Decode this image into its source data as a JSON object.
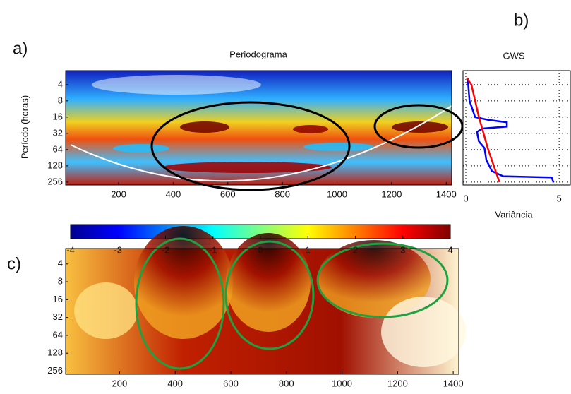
{
  "labels": {
    "a": "a)",
    "b": "b)",
    "c": "c)"
  },
  "chart_data": [
    {
      "type": "heatmap",
      "title": "Periodograma",
      "y_label": "Período (horas)",
      "xlim": [
        6,
        1420
      ],
      "xticks": [
        200,
        400,
        600,
        800,
        1000,
        1200,
        1400
      ],
      "ylim": [
        2.2,
        290
      ],
      "yticks": [
        4,
        8,
        16,
        32,
        64,
        128,
        256
      ],
      "y_log_scale": true,
      "colormap": "jet",
      "colorbar": {
        "lim": [
          -4,
          4
        ],
        "ticks": [
          -4,
          -3,
          -2,
          -1,
          0,
          1,
          2,
          3,
          4
        ]
      }
    },
    {
      "type": "line",
      "title": "GWS",
      "x_label": "Variância",
      "xlim": [
        -0.15,
        5.6
      ],
      "xticks": [
        0,
        5
      ],
      "ylim": [
        2.2,
        290
      ],
      "y_log_scale": true,
      "grid": true,
      "gridlines_y": [
        4,
        8,
        16,
        32,
        64,
        128,
        256
      ],
      "series": [
        {
          "color": "#0000ff",
          "x": [
            0.1,
            0.2,
            0.5,
            1.2,
            2.2,
            2.2,
            0.9,
            0.6,
            0.7,
            1.0,
            1.1,
            1.4,
            2.0,
            4.6,
            4.7
          ],
          "y": [
            3,
            8,
            16,
            18,
            20,
            24,
            26,
            30,
            45,
            60,
            100,
            160,
            200,
            210,
            260
          ]
        },
        {
          "color": "#ff0000",
          "x": [
            0.05,
            0.3,
            0.5,
            0.7,
            0.95,
            1.2,
            1.5,
            1.8
          ],
          "y": [
            3,
            4,
            8,
            16,
            32,
            64,
            128,
            256
          ]
        }
      ]
    },
    {
      "type": "heatmap",
      "xlim": [
        6,
        1420
      ],
      "xticks": [
        200,
        400,
        600,
        800,
        1000,
        1200,
        1400
      ],
      "ylim": [
        2.2,
        290
      ],
      "yticks": [
        4,
        8,
        16,
        32,
        64,
        128,
        256
      ],
      "y_log_scale": true,
      "colormap": "hot"
    }
  ]
}
